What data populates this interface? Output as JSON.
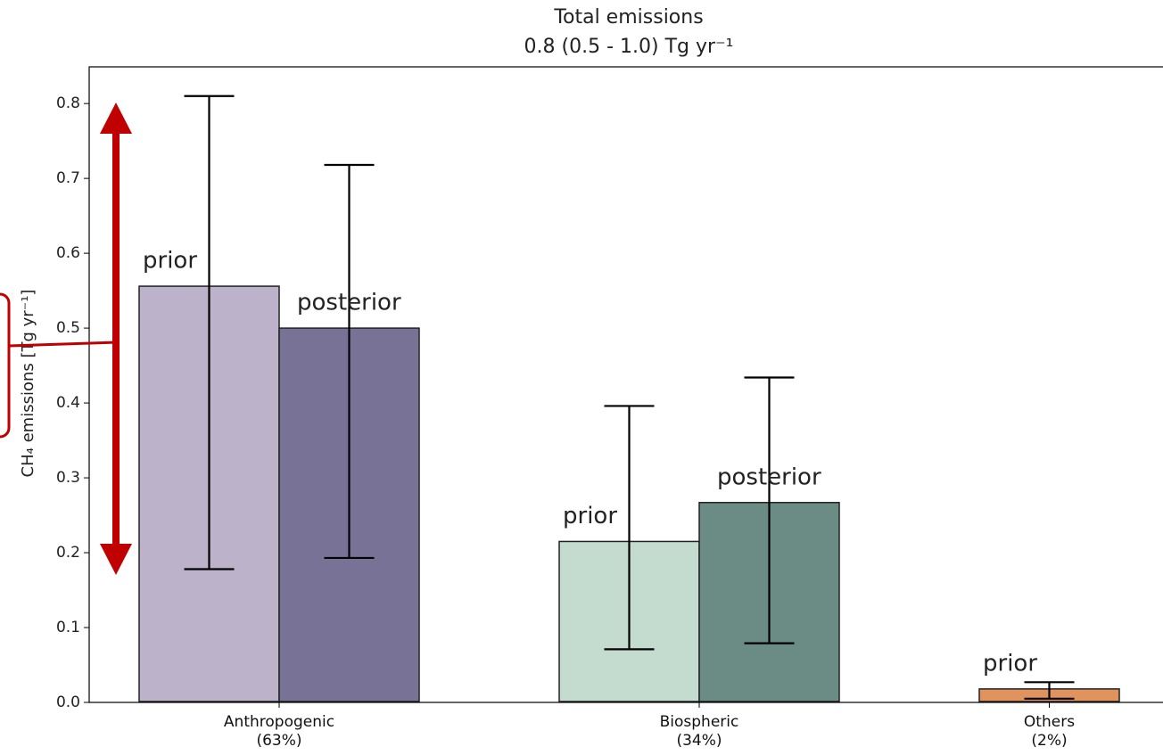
{
  "chart_data": {
    "type": "bar",
    "title": "Total emissions",
    "subtitle": "0.8 (0.5 - 1.0) Tg yr⁻¹",
    "y_label": "CH₄ emissions [Tg yr⁻¹]",
    "categories": [
      "Anthropogenic\n(63%)",
      "Biospheric\n(34%)",
      "Others\n(2%)"
    ],
    "series": [
      {
        "name": "prior",
        "colors": [
          "#bcb2c9",
          "#c4dccf",
          "#e0935c"
        ],
        "values": [
          0.556,
          0.215,
          0.018
        ],
        "lower": [
          0.178,
          0.071,
          0.005
        ],
        "upper": [
          0.81,
          0.396,
          0.027
        ]
      },
      {
        "name": "posterior",
        "colors": [
          "#787297",
          "#6b8c84",
          "#e0935c"
        ],
        "values": [
          0.5,
          0.267,
          null
        ],
        "lower": [
          0.193,
          0.079,
          null
        ],
        "upper": [
          0.718,
          0.434,
          null
        ]
      }
    ],
    "ylim": [
      0,
      0.849
    ],
    "yticks": [
      {
        "value": 0,
        "label": "0.0"
      },
      0.1,
      0.2,
      0.3,
      0.4,
      0.5,
      0.6,
      0.7,
      0.8
    ]
  }
}
